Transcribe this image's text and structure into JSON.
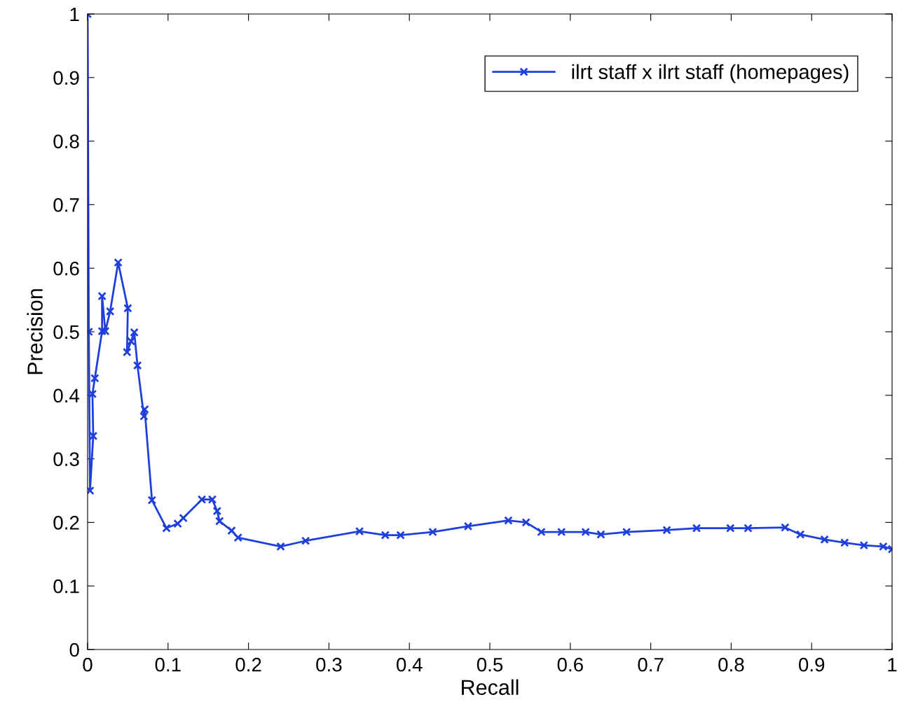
{
  "chart_data": {
    "type": "line",
    "xlabel": "Recall",
    "ylabel": "Precision",
    "xlim": [
      0,
      1
    ],
    "ylim": [
      0,
      1
    ],
    "xticks": [
      0,
      0.1,
      0.2,
      0.3,
      0.4,
      0.5,
      0.6,
      0.7,
      0.8,
      0.9,
      1
    ],
    "yticks": [
      0,
      0.1,
      0.2,
      0.3,
      0.4,
      0.5,
      0.6,
      0.7,
      0.8,
      0.9,
      1
    ],
    "grid": false,
    "legend": "top right",
    "marker": "cross",
    "line_style": "solid",
    "series": [
      {
        "name": "ilrt staff x ilrt staff (homepages)",
        "color": "#1f3fdc",
        "x": [
          0,
          0.0015,
          0.003,
          0.007,
          0.006,
          0.009,
          0.018,
          0.018,
          0.022,
          0.028,
          0.038,
          0.05,
          0.049,
          0.054,
          0.058,
          0.062,
          0.07,
          0.071,
          0.08,
          0.098,
          0.112,
          0.119,
          0.142,
          0.155,
          0.161,
          0.164,
          0.179,
          0.187,
          0.24,
          0.271,
          0.338,
          0.37,
          0.389,
          0.429,
          0.473,
          0.523,
          0.545,
          0.564,
          0.589,
          0.619,
          0.638,
          0.67,
          0.72,
          0.757,
          0.799,
          0.821,
          0.867,
          0.886,
          0.916,
          0.941,
          0.965,
          0.989,
          1.0
        ],
        "values": [
          1,
          0.5,
          0.25,
          0.336,
          0.402,
          0.427,
          0.501,
          0.556,
          0.501,
          0.532,
          0.609,
          0.537,
          0.468,
          0.485,
          0.499,
          0.447,
          0.367,
          0.378,
          0.235,
          0.191,
          0.198,
          0.207,
          0.236,
          0.236,
          0.218,
          0.202,
          0.187,
          0.176,
          0.162,
          0.171,
          0.186,
          0.18,
          0.18,
          0.185,
          0.194,
          0.203,
          0.2,
          0.185,
          0.185,
          0.185,
          0.181,
          0.185,
          0.188,
          0.191,
          0.191,
          0.191,
          0.192,
          0.181,
          0.173,
          0.168,
          0.164,
          0.162,
          0.158
        ]
      }
    ]
  }
}
